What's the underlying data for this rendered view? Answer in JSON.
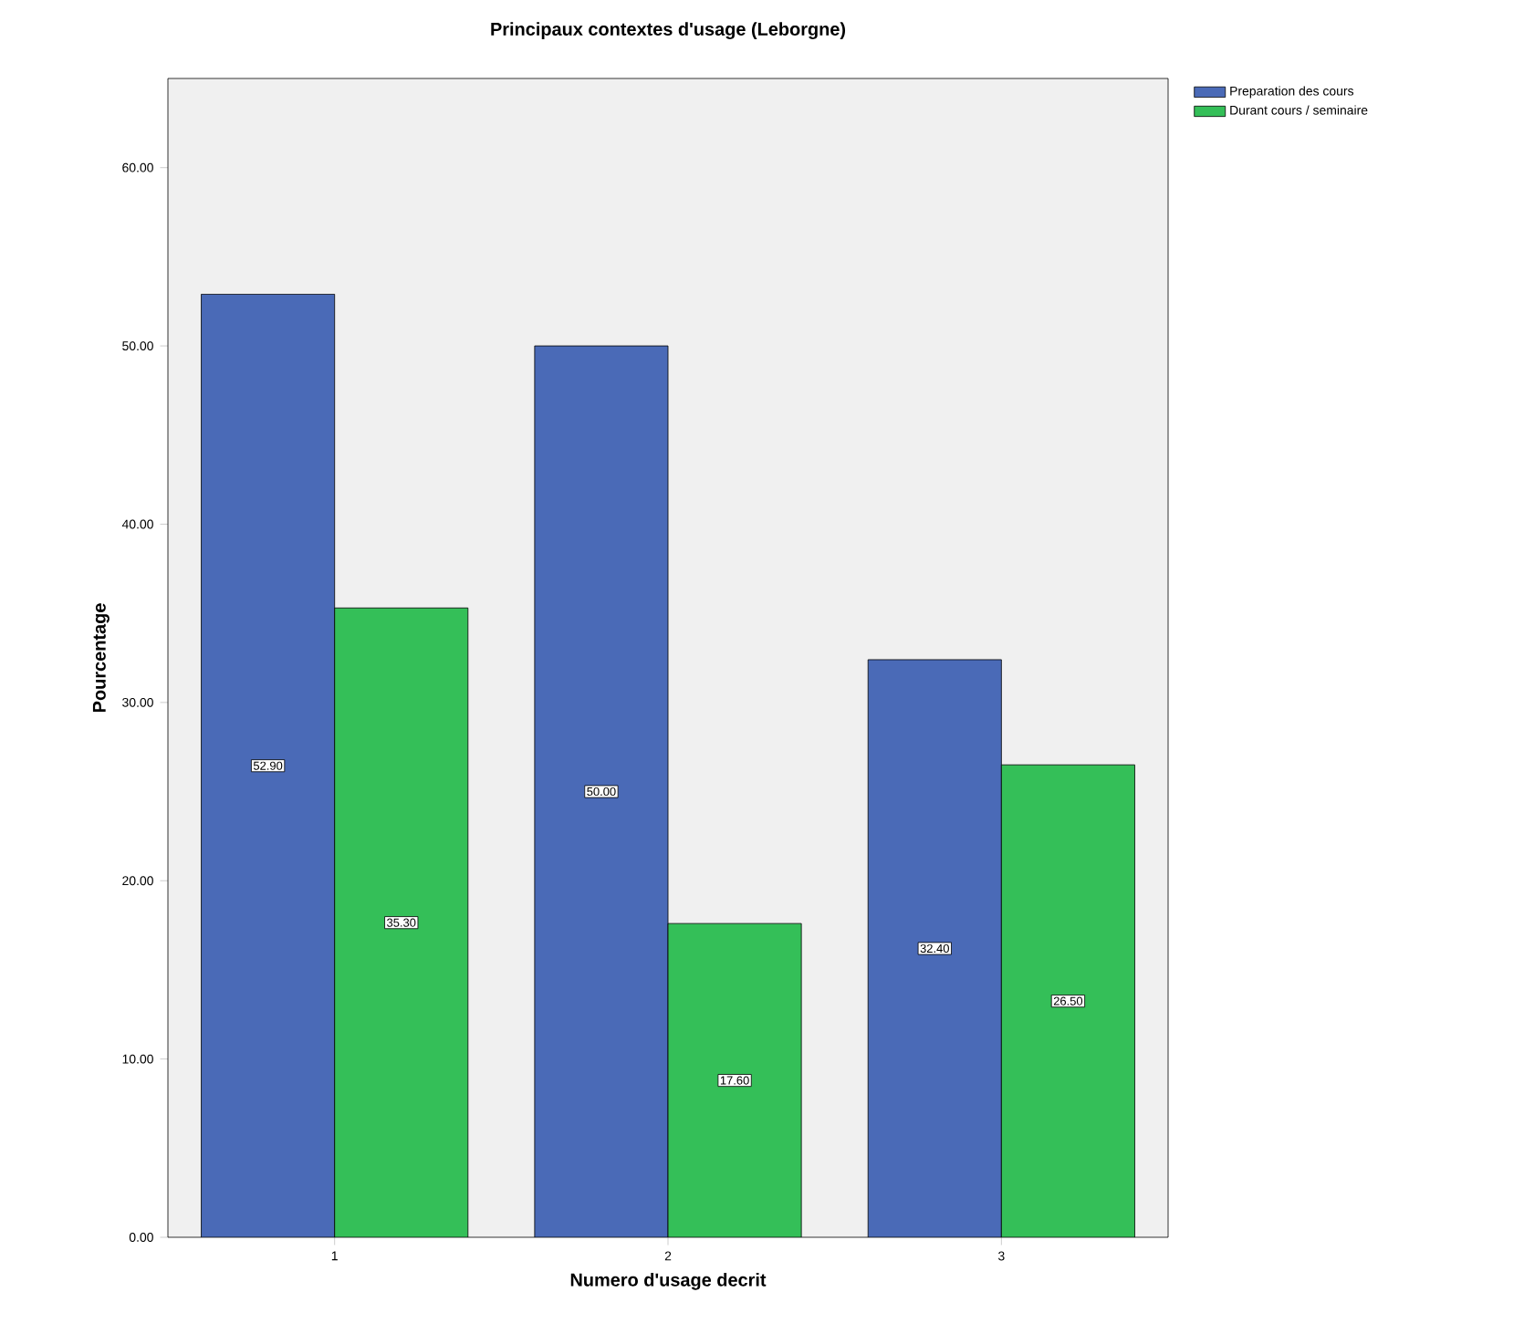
{
  "chart_data": {
    "type": "bar",
    "title": "Principaux contextes d'usage (Leborgne)",
    "xlabel": "Numero d'usage decrit",
    "ylabel": "Pourcentage",
    "categories": [
      "1",
      "2",
      "3"
    ],
    "series": [
      {
        "name": "Preparation des cours",
        "color": "#4a6ab7",
        "values": [
          52.9,
          50.0,
          32.4
        ],
        "value_labels": [
          "52.90",
          "50.00",
          "32.40"
        ]
      },
      {
        "name": "Durant cours / seminaire",
        "color": "#34bf58",
        "values": [
          35.3,
          17.6,
          26.5
        ],
        "value_labels": [
          "35.30",
          "17.60",
          "26.50"
        ]
      }
    ],
    "ylim": [
      0,
      65
    ],
    "yticks": [
      {
        "value": 0,
        "label": "0.00"
      },
      {
        "value": 10,
        "label": "10.00"
      },
      {
        "value": 20,
        "label": "20.00"
      },
      {
        "value": 30,
        "label": "30.00"
      },
      {
        "value": 40,
        "label": "40.00"
      },
      {
        "value": 50,
        "label": "50.00"
      },
      {
        "value": 60,
        "label": "60.00"
      }
    ],
    "grid": false,
    "legend": "top right"
  }
}
